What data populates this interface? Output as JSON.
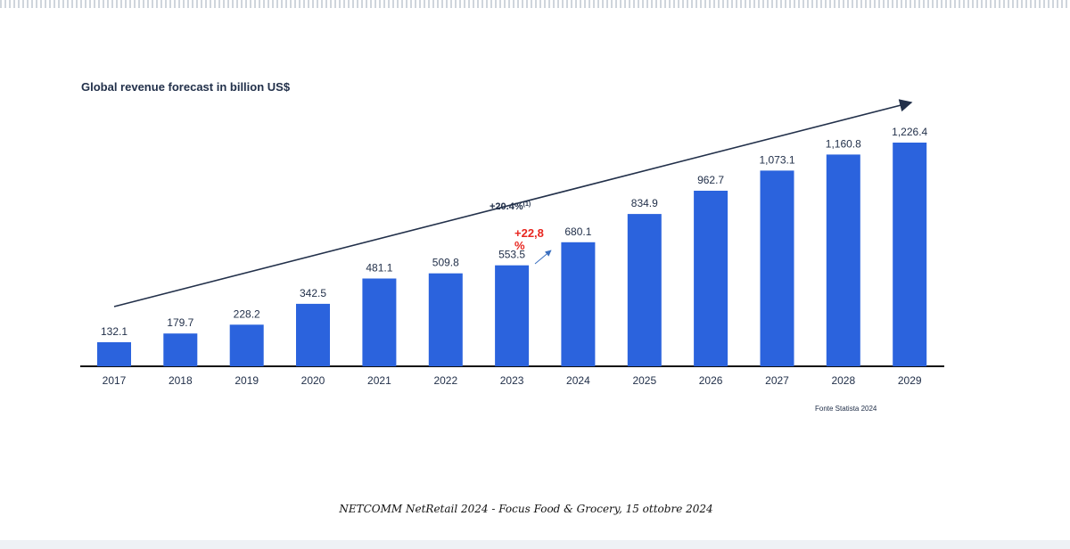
{
  "chart_data": {
    "type": "bar",
    "title": "Global revenue forecast in billion US$",
    "categories": [
      "2017",
      "2018",
      "2019",
      "2020",
      "2021",
      "2022",
      "2023",
      "2024",
      "2025",
      "2026",
      "2027",
      "2028",
      "2029"
    ],
    "values": [
      132.1,
      179.7,
      228.2,
      342.5,
      481.1,
      509.8,
      553.5,
      680.1,
      834.9,
      962.7,
      1073.1,
      1160.8,
      1226.4
    ],
    "value_labels": [
      "132.1",
      "179.7",
      "228.2",
      "342.5",
      "481.1",
      "509.8",
      "553.5",
      "680.1",
      "834.9",
      "962.7",
      "1,073.1",
      "1,160.8",
      "1,226.4"
    ],
    "ylim": [
      0,
      1226.4
    ],
    "grid": false,
    "bar_color": "#2B63DD",
    "annotations": {
      "cagr_trend": "+20.4%",
      "cagr_trend_note": "(1)",
      "growth_2023_2024": "+22,8",
      "growth_2023_2024_unit": "%",
      "growth_color": "#E8261F"
    },
    "source_note": "Fonte Statista 2024"
  },
  "footer": {
    "caption": "NETCOMM NetRetail 2024 - Focus Food & Grocery, 15 ottobre  2024"
  }
}
